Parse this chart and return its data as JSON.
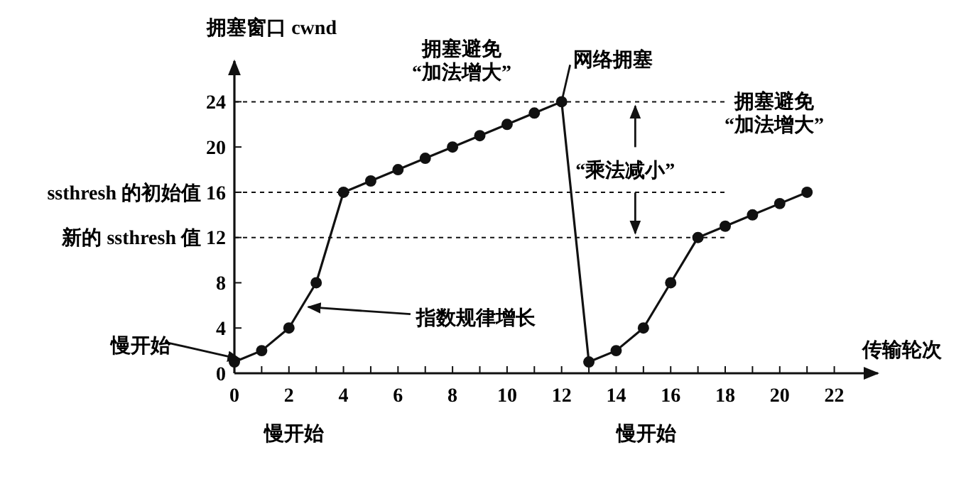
{
  "chart_data": {
    "type": "line",
    "xlabel": "传输轮次",
    "ylabel": "拥塞窗口 cwnd",
    "x": [
      0,
      1,
      2,
      3,
      4,
      5,
      6,
      7,
      8,
      9,
      10,
      11,
      12,
      13,
      14,
      15,
      16,
      17,
      18,
      19,
      20,
      21
    ],
    "series": [
      {
        "color": "#111111",
        "values": [
          1,
          2,
          4,
          8,
          16,
          17,
          18,
          19,
          20,
          21,
          22,
          23,
          24,
          1,
          2,
          4,
          8,
          12,
          13,
          14,
          15,
          16
        ]
      }
    ],
    "xlim": [
      0,
      23.6
    ],
    "ylim": [
      0,
      27.6
    ],
    "xticks": [
      0,
      {
        "value": 1,
        "label": null
      },
      2,
      {
        "value": 3,
        "label": null
      },
      4,
      {
        "value": 5,
        "label": null
      },
      6,
      {
        "value": 7,
        "label": null
      },
      8,
      {
        "value": 9,
        "label": null
      },
      10,
      {
        "value": 11,
        "label": null
      },
      12,
      {
        "value": 13,
        "label": null
      },
      14,
      {
        "value": 15,
        "label": null
      },
      16,
      {
        "value": 17,
        "label": null
      },
      18,
      {
        "value": 19,
        "label": null
      },
      20,
      {
        "value": 21,
        "label": null
      },
      22
    ],
    "yticks": [
      0,
      4,
      8,
      {
        "value": 12,
        "label": "新的 ssthresh 值 12"
      },
      {
        "value": 16,
        "label": "ssthresh 的初始值 16"
      },
      20,
      24
    ],
    "ref_lines": [
      {
        "axis": "y",
        "value": 24,
        "color": "#111111",
        "line_style": "dashed"
      },
      {
        "axis": "y",
        "value": 16,
        "color": "#111111",
        "line_style": "dashed"
      },
      {
        "axis": "y",
        "value": 12,
        "color": "#111111",
        "line_style": "dashed"
      }
    ],
    "annotations": [
      "拥塞避免\n“加法增大”",
      {
        "text": "网络拥塞",
        "x": 12,
        "y": 24
      },
      {
        "text": "“乘法减小”",
        "x": 14.7,
        "y": 24
      },
      "拥塞避免\n“加法增大”",
      {
        "text": "指数规律增长",
        "x": 2.5,
        "y": 5.6
      },
      {
        "text": "慢开始",
        "x": 0,
        "y": 1
      },
      "慢开始",
      "慢开始"
    ],
    "marker": "circle",
    "line_style": "solid"
  }
}
